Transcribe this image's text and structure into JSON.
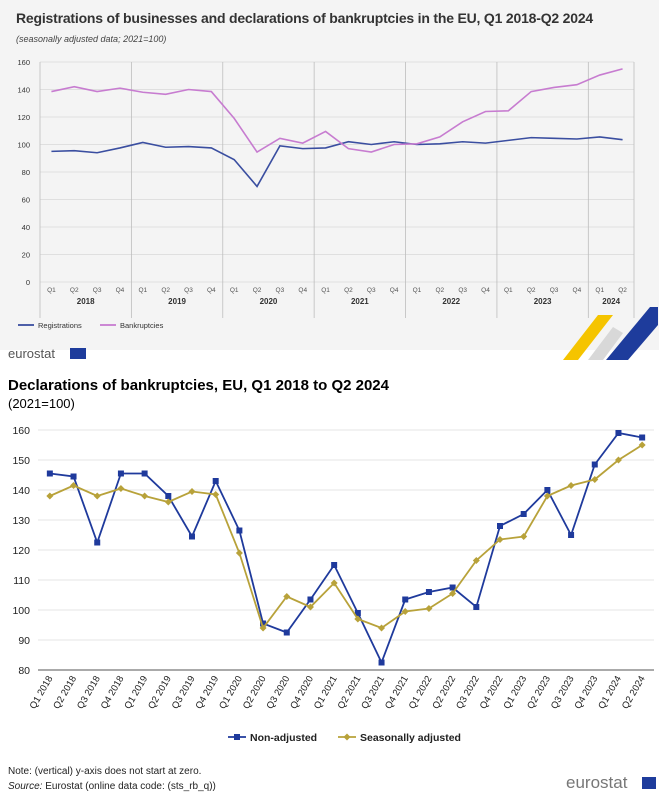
{
  "panel1": {
    "title": "Registrations of businesses and declarations of bankruptcies in the EU, Q1 2018-Q2 2024",
    "subtitle": "(seasonally adjusted data; 2021=100)",
    "logo_text": "eurostat"
  },
  "panel2": {
    "title": "Declarations of bankruptcies, EU, Q1 2018 to Q2 2024",
    "subtitle": "(2021=100)",
    "note": "Note: (vertical) y-axis does not start at zero.",
    "source_label": "Source:",
    "source_text": " Eurostat (online data code: (sts_rb_q))",
    "logo_text": "eurostat"
  },
  "colors": {
    "registrations": "#3a4ea0",
    "bankruptcies": "#c77cd0",
    "non_adjusted": "#1f3a9c",
    "seasonally_adjusted": "#b8a23a",
    "panel1_bg": "#f4f4f4",
    "logo_yellow": "#f5c400",
    "logo_blue": "#1e3c9c"
  },
  "chart_data": [
    {
      "type": "line",
      "x": [
        "Q1",
        "Q2",
        "Q3",
        "Q4",
        "Q1",
        "Q2",
        "Q3",
        "Q4",
        "Q1",
        "Q2",
        "Q3",
        "Q4",
        "Q1",
        "Q2",
        "Q3",
        "Q4",
        "Q1",
        "Q2",
        "Q3",
        "Q4",
        "Q1",
        "Q2",
        "Q3",
        "Q4",
        "Q1",
        "Q2"
      ],
      "years": [
        "2018",
        "2019",
        "2020",
        "2021",
        "2022",
        "2023",
        "2024"
      ],
      "series": [
        {
          "name": "Registrations",
          "values": [
            95,
            95.5,
            94,
            97.5,
            101.5,
            98,
            98.5,
            97.5,
            89,
            69.5,
            99,
            97,
            97.5,
            102,
            100,
            102,
            100,
            100.5,
            102,
            101,
            103,
            105,
            104.5,
            104,
            105.5,
            103.5
          ]
        },
        {
          "name": "Bankruptcies",
          "values": [
            138.5,
            142,
            138.5,
            141,
            138,
            136.5,
            140,
            138.5,
            119,
            94.5,
            104.5,
            101,
            109.5,
            97,
            94.5,
            100,
            100.5,
            105.5,
            116.5,
            124,
            124.5,
            138.5,
            141.5,
            143.5,
            150.5,
            155
          ]
        }
      ],
      "yticks": [
        0,
        20,
        40,
        60,
        80,
        100,
        120,
        140,
        160
      ],
      "ylim": [
        0,
        160
      ],
      "grid": "horizontal",
      "legend_placement": "bottom-left"
    },
    {
      "type": "line",
      "x": [
        "Q1 2018",
        "Q2 2018",
        "Q3 2018",
        "Q4 2018",
        "Q1 2019",
        "Q2 2019",
        "Q3 2019",
        "Q4 2019",
        "Q1 2020",
        "Q2 2020",
        "Q3 2020",
        "Q4 2020",
        "Q1 2021",
        "Q2 2021",
        "Q3 2021",
        "Q4 2021",
        "Q1 2022",
        "Q2 2022",
        "Q3 2022",
        "Q4 2022",
        "Q1 2023",
        "Q2 2023",
        "Q3 2023",
        "Q4 2023",
        "Q1 2024",
        "Q2 2024"
      ],
      "series": [
        {
          "name": "Non-adjusted",
          "values": [
            145.5,
            144.5,
            122.5,
            145.5,
            145.5,
            138,
            124.5,
            143,
            126.5,
            95.5,
            92.5,
            103.5,
            115,
            99,
            82.5,
            103.5,
            106,
            107.5,
            101,
            128,
            132,
            140,
            125,
            148.5,
            159,
            157.5
          ]
        },
        {
          "name": "Seasonally adjusted",
          "values": [
            138,
            141.5,
            138,
            140.5,
            138,
            136,
            139.5,
            138.5,
            119,
            94,
            104.5,
            101,
            109,
            97,
            94,
            99.5,
            100.5,
            105.5,
            116.5,
            123.5,
            124.5,
            138,
            141.5,
            143.5,
            150,
            155
          ]
        }
      ],
      "yticks": [
        80,
        90,
        100,
        110,
        120,
        130,
        140,
        150,
        160
      ],
      "ylim": [
        80,
        160
      ],
      "grid": "horizontal",
      "legend_placement": "bottom-center"
    }
  ]
}
